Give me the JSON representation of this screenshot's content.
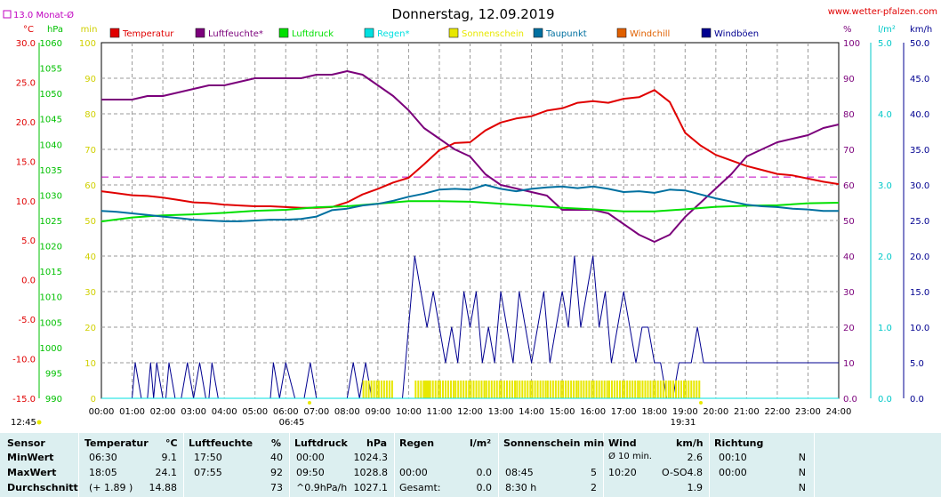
{
  "header": {
    "title": "Donnerstag, 12.09.2019",
    "site": "www.wetter-pfalzen.com",
    "monthly_avg": "13.0 Monat-Ø",
    "sunrise": "06:45",
    "sunset": "19:31",
    "left_time": "12:45"
  },
  "colors": {
    "temperature": "#e00000",
    "humidity": "#7b007b",
    "pressure": "#00e000",
    "rain": "#00e0e0",
    "sunshine": "#e8e800",
    "dewpoint": "#0070a0",
    "windchill": "#e06000",
    "gusts": "#000090",
    "monthly_avg": "#c000c0",
    "table_bg": "#dceff0"
  },
  "chart_data": {
    "type": "line",
    "x_ticks": [
      "00:00",
      "01:00",
      "02:00",
      "03:00",
      "04:00",
      "05:00",
      "06:00",
      "07:00",
      "08:00",
      "09:00",
      "10:00",
      "11:00",
      "12:00",
      "13:00",
      "14:00",
      "15:00",
      "16:00",
      "17:00",
      "18:00",
      "19:00",
      "20:00",
      "21:00",
      "22:00",
      "23:00",
      "24:00"
    ],
    "axes": [
      {
        "unit": "°C",
        "ticks": [
          "30.0",
          "25.0",
          "20.0",
          "15.0",
          "10.0",
          "5.0",
          "0.0",
          "-5.0",
          "-10.0",
          "-15.0"
        ],
        "ylim": [
          -15,
          30
        ]
      },
      {
        "unit": "hPa",
        "ticks": [
          "1060",
          "1055",
          "1050",
          "1045",
          "1040",
          "1035",
          "1030",
          "1025",
          "1020",
          "1015",
          "1010",
          "1005",
          "1000",
          "995",
          "990"
        ],
        "ylim": [
          990,
          1060
        ]
      },
      {
        "unit": "min",
        "ticks": [
          "100",
          "90",
          "80",
          "70",
          "60",
          "50",
          "40",
          "30",
          "20",
          "10",
          "0"
        ],
        "ylim": [
          0,
          100
        ]
      },
      {
        "unit": "%",
        "ticks": [
          "100",
          "90",
          "80",
          "70",
          "60",
          "50",
          "40",
          "30",
          "20",
          "10",
          "0.0"
        ],
        "ylim": [
          0,
          100
        ]
      },
      {
        "unit": "l/m²",
        "ticks": [
          "5.0",
          "4.0",
          "3.0",
          "2.0",
          "1.0",
          "0.0"
        ],
        "ylim": [
          0,
          5
        ]
      },
      {
        "unit": "km/h",
        "ticks": [
          "50.0",
          "45.0",
          "40.0",
          "35.0",
          "30.0",
          "25.0",
          "20.0",
          "15.0",
          "10.0",
          "5.0",
          "0.0"
        ],
        "ylim": [
          0,
          50
        ]
      }
    ],
    "monthly_avg_temp": 13.0,
    "series": [
      {
        "name": "Temperatur",
        "axis": "°C",
        "x": [
          0,
          1,
          1.5,
          2,
          2.5,
          3,
          3.5,
          4,
          4.5,
          5,
          5.5,
          6,
          6.5,
          7,
          7.5,
          8,
          8.5,
          9,
          9.5,
          10,
          10.5,
          11,
          11.5,
          12,
          12.5,
          13,
          13.5,
          14,
          14.5,
          15,
          15.5,
          16,
          16.5,
          17,
          17.5,
          18,
          18.5,
          19,
          19.5,
          20,
          20.5,
          21,
          21.5,
          22,
          22.5,
          23,
          23.5,
          24
        ],
        "y": [
          11.2,
          10.7,
          10.6,
          10.4,
          10.1,
          9.8,
          9.7,
          9.5,
          9.4,
          9.3,
          9.3,
          9.2,
          9.1,
          9.1,
          9.2,
          9.8,
          10.8,
          11.5,
          12.3,
          12.9,
          14.6,
          16.4,
          17.3,
          17.4,
          18.9,
          19.9,
          20.4,
          20.7,
          21.4,
          21.7,
          22.4,
          22.6,
          22.4,
          22.9,
          23.1,
          24.0,
          22.5,
          18.6,
          17.0,
          15.8,
          15.1,
          14.4,
          13.9,
          13.4,
          13.2,
          12.8,
          12.4,
          12.1
        ]
      },
      {
        "name": "Luftfeuchte*",
        "axis": "%",
        "x": [
          0,
          1,
          1.5,
          2,
          2.5,
          3,
          3.5,
          4,
          4.5,
          5,
          5.5,
          6,
          6.5,
          7,
          7.5,
          8,
          8.5,
          9,
          9.5,
          10,
          10.5,
          11,
          11.5,
          12,
          12.5,
          13,
          13.5,
          14,
          14.5,
          15,
          15.5,
          16,
          16.5,
          17,
          17.5,
          18,
          18.5,
          19,
          19.5,
          20,
          20.5,
          21,
          21.5,
          22,
          22.5,
          23,
          23.5,
          24
        ],
        "y": [
          84,
          84,
          85,
          85,
          86,
          87,
          88,
          88,
          89,
          90,
          90,
          90,
          90,
          91,
          91,
          92,
          91,
          88,
          85,
          81,
          76,
          73,
          70,
          68,
          63,
          60,
          59,
          58,
          57,
          53,
          53,
          53,
          52,
          49,
          46,
          44,
          46,
          51,
          55,
          59,
          63,
          68,
          70,
          72,
          73,
          74,
          76,
          77
        ]
      },
      {
        "name": "Luftdruck",
        "axis": "hPa",
        "x": [
          0,
          1,
          1.5,
          2,
          3,
          4,
          5,
          6,
          7,
          8,
          9,
          10,
          11,
          12,
          13,
          14,
          15,
          16,
          17,
          18,
          19,
          20,
          21,
          22,
          23,
          24
        ],
        "y": [
          1024.8,
          1025.6,
          1025.8,
          1026.0,
          1026.2,
          1026.5,
          1026.9,
          1027.1,
          1027.6,
          1027.8,
          1028.3,
          1028.8,
          1028.8,
          1028.7,
          1028.3,
          1027.9,
          1027.5,
          1027.2,
          1026.8,
          1026.8,
          1027.2,
          1027.7,
          1027.9,
          1028.0,
          1028.4,
          1028.5
        ]
      },
      {
        "name": "Taupunkt",
        "axis": "°C",
        "x": [
          0,
          0.5,
          1,
          1.5,
          2,
          2.5,
          3,
          3.5,
          4,
          4.5,
          5,
          5.5,
          6,
          6.5,
          7,
          7.5,
          8,
          8.5,
          9,
          9.5,
          10,
          10.5,
          11,
          11.5,
          12,
          12.5,
          13,
          13.5,
          14,
          14.5,
          15,
          15.5,
          16,
          16.5,
          17,
          17.5,
          18,
          18.5,
          19,
          19.5,
          20,
          20.5,
          21,
          21.5,
          22,
          22.5,
          23,
          23.5,
          24
        ],
        "y": [
          8.7,
          8.6,
          8.4,
          8.2,
          8.0,
          7.8,
          7.6,
          7.5,
          7.4,
          7.4,
          7.5,
          7.6,
          7.6,
          7.7,
          8.0,
          8.8,
          9.0,
          9.4,
          9.6,
          10.0,
          10.5,
          10.9,
          11.4,
          11.5,
          11.4,
          12.0,
          11.5,
          11.2,
          11.5,
          11.7,
          11.8,
          11.6,
          11.8,
          11.5,
          11.1,
          11.2,
          11.0,
          11.4,
          11.3,
          10.8,
          10.3,
          9.9,
          9.5,
          9.3,
          9.2,
          9.0,
          8.9,
          8.7,
          8.7
        ]
      },
      {
        "name": "Windböen",
        "axis": "km/h",
        "x": [
          0,
          0.5,
          0.7,
          0.8,
          1.0,
          1.1,
          1.3,
          1.5,
          1.6,
          1.7,
          1.8,
          2.0,
          2.1,
          2.2,
          2.4,
          2.6,
          2.8,
          3.0,
          3.2,
          3.4,
          3.5,
          3.6,
          3.8,
          4.0,
          4.5,
          5.0,
          5.5,
          5.6,
          5.8,
          6.0,
          6.3,
          6.5,
          6.6,
          6.8,
          7.0,
          7.5,
          7.8,
          8.0,
          8.2,
          8.4,
          8.6,
          8.8,
          9.0,
          9.5,
          9.8,
          10.0,
          10.2,
          10.4,
          10.6,
          10.8,
          11.0,
          11.2,
          11.4,
          11.6,
          11.8,
          12.0,
          12.2,
          12.4,
          12.6,
          12.8,
          13.0,
          13.2,
          13.4,
          13.6,
          13.8,
          14.0,
          14.2,
          14.4,
          14.6,
          14.8,
          15.0,
          15.2,
          15.4,
          15.6,
          15.8,
          16.0,
          16.2,
          16.4,
          16.6,
          16.8,
          17.0,
          17.2,
          17.4,
          17.6,
          17.8,
          18.0,
          18.2,
          18.4,
          18.6,
          18.8,
          19.0,
          19.2,
          19.4,
          19.6,
          19.8,
          20.0,
          20.5,
          21.0,
          21.5,
          22.0,
          22.5,
          23.0,
          23.2,
          23.5,
          23.8,
          24.0
        ],
        "y": [
          0,
          0,
          0,
          0,
          0,
          5,
          0,
          0,
          5,
          0,
          5,
          0,
          0,
          5,
          0,
          0,
          5,
          0,
          5,
          0,
          0,
          5,
          0,
          0,
          0,
          0,
          0,
          5,
          0,
          5,
          0,
          0,
          0,
          5,
          0,
          0,
          0,
          0,
          5,
          0,
          5,
          0,
          0,
          0,
          0,
          10,
          20,
          15,
          10,
          15,
          10,
          5,
          10,
          5,
          15,
          10,
          15,
          5,
          10,
          5,
          15,
          10,
          5,
          15,
          10,
          5,
          10,
          15,
          5,
          10,
          15,
          10,
          20,
          10,
          15,
          20,
          10,
          15,
          5,
          10,
          15,
          10,
          5,
          10,
          10,
          5,
          5,
          0,
          0,
          5,
          5,
          5,
          10,
          5,
          5,
          5,
          5,
          5,
          5,
          5,
          5,
          5,
          5,
          5,
          5,
          5
        ]
      },
      {
        "name": "Sonnenschein",
        "axis": "min",
        "x": [
          8.5,
          9,
          10.2,
          10.5,
          11,
          11.5,
          12,
          12.5,
          13,
          13.5,
          14,
          14.5,
          15,
          15.5,
          16,
          16.5,
          17,
          17.5,
          18,
          18.5,
          19
        ],
        "y": [
          5,
          5,
          5,
          5,
          5,
          5,
          5,
          5,
          5,
          5,
          5,
          5,
          5,
          5,
          5,
          5,
          5,
          5,
          5,
          5,
          5
        ]
      },
      {
        "name": "Regen*",
        "axis": "l/m²",
        "x": [
          0,
          24
        ],
        "y": [
          0,
          0
        ]
      },
      {
        "name": "Windchill",
        "axis": "°C",
        "x": [],
        "y": []
      }
    ]
  },
  "table": {
    "headers": {
      "sensor": "Sensor",
      "temp": "Temperatur",
      "temp_unit": "°C",
      "hum": "Luftfeuchte",
      "hum_unit": "%",
      "press": "Luftdruck",
      "press_unit": "hPa",
      "rain": "Regen",
      "rain_unit": "l/m²",
      "sun": "Sonnenschein min",
      "wind": "Wind",
      "wind_unit": "km/h",
      "dir": "Richtung"
    },
    "rows": [
      {
        "label": "MinWert",
        "temp_time": "06:30",
        "temp_val": "9.1",
        "hum_time": "17:50",
        "hum_val": "40",
        "press_time": "00:00",
        "press_val": "1024.3",
        "rain_time": "",
        "rain_val": "",
        "sun_time": "",
        "sun_val": "",
        "wind_label": "Ø 10 min.",
        "wind_dir": "",
        "wind_val": "2.6",
        "dir_time": "00:10",
        "dir_val": "N"
      },
      {
        "label": "MaxWert",
        "temp_time": "18:05",
        "temp_val": "24.1",
        "hum_time": "07:55",
        "hum_val": "92",
        "press_time": "09:50",
        "press_val": "1028.8",
        "rain_time": "00:00",
        "rain_val": "0.0",
        "sun_time": "08:45",
        "sun_val": "5",
        "wind_label": "10:20",
        "wind_dir": "O-SO",
        "wind_val": "4.8",
        "dir_time": "00:00",
        "dir_val": "N"
      },
      {
        "label": "Durchschnitt",
        "temp_time": "(+ 1.89 )",
        "temp_val": "14.88",
        "hum_time": "",
        "hum_val": "73",
        "press_time": "^0.9hPa/h",
        "press_val": "1027.1",
        "rain_time": "Gesamt:",
        "rain_val": "0.0",
        "sun_time": "8:30 h",
        "sun_val": "2",
        "wind_label": "",
        "wind_dir": "",
        "wind_val": "1.9",
        "dir_time": "",
        "dir_val": "N"
      }
    ]
  }
}
